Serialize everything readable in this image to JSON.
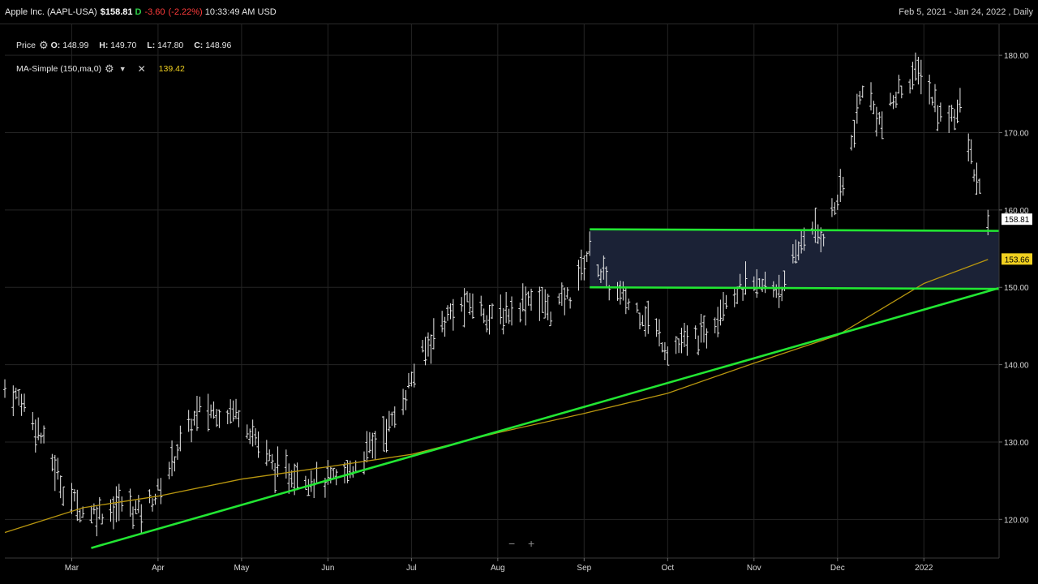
{
  "header": {
    "name": "Apple Inc. (AAPL-USA)",
    "price": "$158.81",
    "flag": "D",
    "change": "-3.60",
    "change_pct": "(-2.22%)",
    "time": "10:33:49 AM USD",
    "range": "Feb 5, 2021 - Jan 24, 2022 , Daily"
  },
  "legend": {
    "price_label": "Price",
    "o_label": "O:",
    "o": "148.99",
    "h_label": "H:",
    "h": "149.70",
    "l_label": "L:",
    "l": "147.80",
    "c_label": "C:",
    "c": "148.96",
    "ma_label": "MA-Simple (150,ma,0)",
    "ma_value": "139.42"
  },
  "zoom": {
    "minus": "−",
    "plus": "+"
  },
  "colors": {
    "background": "#000000",
    "bars": "#e8e8e8",
    "trendline": "#22e633",
    "ma": "#b8960f",
    "zone": "#1b2236",
    "price_tag": "#ffffff",
    "ma_tag": "#f0d020"
  },
  "chart_data": {
    "type": "ohlc",
    "xlabel": "",
    "ylabel": "",
    "ylim": [
      115,
      184
    ],
    "yticks": [
      120,
      130,
      140,
      150,
      160,
      170,
      180
    ],
    "ytick_labels": [
      "120.00",
      "130.00",
      "140.00",
      "150.00",
      "160.00",
      "170.00",
      "180.00"
    ],
    "month_labels": [
      {
        "date": "2021-03-01",
        "label": "Mar"
      },
      {
        "date": "2021-04-01",
        "label": "Apr"
      },
      {
        "date": "2021-05-01",
        "label": "May"
      },
      {
        "date": "2021-06-01",
        "label": "Jun"
      },
      {
        "date": "2021-07-01",
        "label": "Jul"
      },
      {
        "date": "2021-08-01",
        "label": "Aug"
      },
      {
        "date": "2021-09-01",
        "label": "Sep"
      },
      {
        "date": "2021-10-01",
        "label": "Oct"
      },
      {
        "date": "2021-11-01",
        "label": "Nov"
      },
      {
        "date": "2021-12-01",
        "label": "Dec"
      },
      {
        "date": "2022-01-01",
        "label": "2022"
      }
    ],
    "x_range": [
      "2021-02-05",
      "2022-01-28"
    ],
    "grid": true,
    "price_series": [
      [
        "2021-02-05",
        137
      ],
      [
        "2021-02-12",
        135
      ],
      [
        "2021-02-19",
        130
      ],
      [
        "2021-02-26",
        124
      ],
      [
        "2021-03-05",
        121
      ],
      [
        "2021-03-12",
        121
      ],
      [
        "2021-03-19",
        122
      ],
      [
        "2021-03-26",
        121
      ],
      [
        "2021-04-02",
        124
      ],
      [
        "2021-04-09",
        130
      ],
      [
        "2021-04-16",
        134
      ],
      [
        "2021-04-23",
        134
      ],
      [
        "2021-04-30",
        134
      ],
      [
        "2021-05-07",
        130
      ],
      [
        "2021-05-14",
        126
      ],
      [
        "2021-05-21",
        126
      ],
      [
        "2021-05-28",
        125
      ],
      [
        "2021-06-04",
        125
      ],
      [
        "2021-06-11",
        127
      ],
      [
        "2021-06-18",
        130
      ],
      [
        "2021-06-25",
        133
      ],
      [
        "2021-07-02",
        139
      ],
      [
        "2021-07-09",
        144
      ],
      [
        "2021-07-16",
        147
      ],
      [
        "2021-07-23",
        148
      ],
      [
        "2021-07-30",
        146
      ],
      [
        "2021-08-06",
        147
      ],
      [
        "2021-08-13",
        149
      ],
      [
        "2021-08-20",
        147
      ],
      [
        "2021-08-27",
        149
      ],
      [
        "2021-09-03",
        155
      ],
      [
        "2021-09-10",
        150
      ],
      [
        "2021-09-17",
        148
      ],
      [
        "2021-09-24",
        146
      ],
      [
        "2021-10-01",
        142
      ],
      [
        "2021-10-08",
        143
      ],
      [
        "2021-10-15",
        144
      ],
      [
        "2021-10-22",
        149
      ],
      [
        "2021-10-29",
        150
      ],
      [
        "2021-11-05",
        150
      ],
      [
        "2021-11-12",
        150
      ],
      [
        "2021-11-19",
        157
      ],
      [
        "2021-11-26",
        157
      ],
      [
        "2021-12-03",
        163
      ],
      [
        "2021-12-10",
        176
      ],
      [
        "2021-12-17",
        171
      ],
      [
        "2021-12-24",
        176
      ],
      [
        "2021-12-31",
        178
      ],
      [
        "2022-01-07",
        172
      ],
      [
        "2022-01-14",
        173
      ],
      [
        "2022-01-21",
        162
      ],
      [
        "2022-01-24",
        159
      ]
    ],
    "moving_average": {
      "name": "MA-Simple (150,ma,0)",
      "points": [
        [
          "2021-02-05",
          118.3
        ],
        [
          "2021-03-05",
          121.5
        ],
        [
          "2021-04-01",
          123.0
        ],
        [
          "2021-05-01",
          125.2
        ],
        [
          "2021-06-01",
          126.8
        ],
        [
          "2021-07-01",
          128.4
        ],
        [
          "2021-08-01",
          131.2
        ],
        [
          "2021-09-01",
          133.7
        ],
        [
          "2021-10-01",
          136.3
        ],
        [
          "2021-11-01",
          140.2
        ],
        [
          "2021-12-01",
          143.8
        ],
        [
          "2022-01-01",
          150.5
        ],
        [
          "2022-01-24",
          153.6
        ]
      ]
    },
    "trendlines": [
      {
        "from": [
          "2021-03-08",
          116.3
        ],
        "to": [
          "2022-01-28",
          149.9
        ]
      },
      {
        "from": [
          "2021-09-03",
          157.5
        ],
        "to": [
          "2022-01-28",
          157.3
        ]
      },
      {
        "from": [
          "2021-09-03",
          150.0
        ],
        "to": [
          "2022-01-28",
          149.8
        ]
      }
    ],
    "zone": {
      "from": "2021-09-03",
      "to": "2022-01-28",
      "low": 149.9,
      "high": 157.4
    },
    "last_price_tag": "158.81",
    "ma_tag": "153.66"
  }
}
